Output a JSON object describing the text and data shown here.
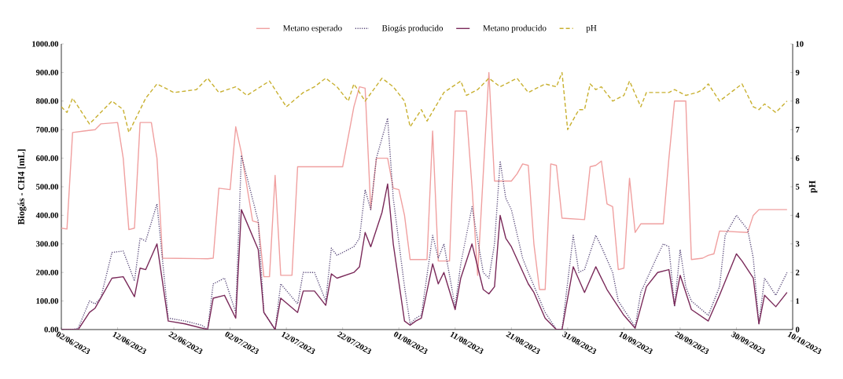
{
  "chart_data": {
    "type": "line",
    "ylabel": "Biogás - CH4 [mL]",
    "y2label": "pH",
    "legend": "top",
    "grid": false,
    "xlim": [
      "2023-06-02",
      "2023-10-10"
    ],
    "xticks": [
      {
        "value": "2023-06-02",
        "label": "02/06/2023"
      },
      {
        "value": "2023-06-12",
        "label": "12/06/2023"
      },
      {
        "value": "2023-06-22",
        "label": "22/06/2023"
      },
      {
        "value": "2023-07-02",
        "label": "02/07/2023"
      },
      {
        "value": "2023-07-12",
        "label": "12/07/2023"
      },
      {
        "value": "2023-07-22",
        "label": "22/07/2023"
      },
      {
        "value": "2023-08-01",
        "label": "01/08/2023"
      },
      {
        "value": "2023-08-11",
        "label": "11/08/2023"
      },
      {
        "value": "2023-08-21",
        "label": "21/08/2023"
      },
      {
        "value": "2023-08-31",
        "label": "31/08/2023"
      },
      {
        "value": "2023-09-10",
        "label": "10/09/2023"
      },
      {
        "value": "2023-09-20",
        "label": "20/09/2023"
      },
      {
        "value": "2023-09-30",
        "label": "30/09/2023"
      },
      {
        "value": "2023-10-10",
        "label": "10/10/2023"
      }
    ],
    "ylim": [
      0,
      1000
    ],
    "yticks": [
      {
        "value": 0,
        "label": "0.00"
      },
      {
        "value": 100,
        "label": "100.00"
      },
      {
        "value": 200,
        "label": "200.00"
      },
      {
        "value": 300,
        "label": "300.00"
      },
      {
        "value": 400,
        "label": "400.00"
      },
      {
        "value": 500,
        "label": "500.00"
      },
      {
        "value": 600,
        "label": "600.00"
      },
      {
        "value": 700,
        "label": "700.00"
      },
      {
        "value": 800,
        "label": "800.00"
      },
      {
        "value": 900,
        "label": "900.00"
      },
      {
        "value": 1000,
        "label": "1000.00"
      }
    ],
    "y2lim": [
      0,
      10
    ],
    "y2ticks": [
      0,
      1,
      2,
      3,
      4,
      5,
      6,
      7,
      8,
      9,
      10
    ],
    "series": [
      {
        "name": "Metano esperado",
        "color": "#f0a0a0",
        "line_style": "solid",
        "x": [
          "2023-06-02",
          "2023-06-03",
          "2023-06-04",
          "2023-06-06",
          "2023-06-08",
          "2023-06-09",
          "2023-06-12",
          "2023-06-13",
          "2023-06-14",
          "2023-06-15",
          "2023-06-16",
          "2023-06-18",
          "2023-06-19",
          "2023-06-20",
          "2023-06-28",
          "2023-06-29",
          "2023-06-30",
          "2023-07-02",
          "2023-07-03",
          "2023-07-04",
          "2023-07-06",
          "2023-07-07",
          "2023-07-08",
          "2023-07-09",
          "2023-07-10",
          "2023-07-11",
          "2023-07-13",
          "2023-07-14",
          "2023-07-22",
          "2023-07-24",
          "2023-07-25",
          "2023-07-26",
          "2023-07-27",
          "2023-07-28",
          "2023-07-30",
          "2023-07-31",
          "2023-08-01",
          "2023-08-02",
          "2023-08-03",
          "2023-08-06",
          "2023-08-07",
          "2023-08-08",
          "2023-08-10",
          "2023-08-11",
          "2023-08-13",
          "2023-08-14",
          "2023-08-15",
          "2023-08-17",
          "2023-08-18",
          "2023-08-21",
          "2023-08-22",
          "2023-08-23",
          "2023-08-24",
          "2023-08-25",
          "2023-08-26",
          "2023-08-27",
          "2023-08-28",
          "2023-08-29",
          "2023-08-30",
          "2023-09-03",
          "2023-09-04",
          "2023-09-05",
          "2023-09-06",
          "2023-09-07",
          "2023-09-08",
          "2023-09-09",
          "2023-09-10",
          "2023-09-11",
          "2023-09-12",
          "2023-09-13",
          "2023-09-17",
          "2023-09-18",
          "2023-09-19",
          "2023-09-21",
          "2023-09-22",
          "2023-09-24",
          "2023-09-25",
          "2023-09-26",
          "2023-09-27",
          "2023-10-02",
          "2023-10-03",
          "2023-10-04",
          "2023-10-09"
        ],
        "values": [
          355,
          352,
          690,
          695,
          700,
          720,
          725,
          600,
          350,
          355,
          725,
          725,
          600,
          250,
          248,
          250,
          495,
          490,
          710,
          620,
          380,
          375,
          185,
          185,
          540,
          190,
          190,
          570,
          570,
          780,
          850,
          845,
          420,
          600,
          600,
          495,
          490,
          400,
          245,
          245,
          695,
          240,
          240,
          765,
          765,
          500,
          190,
          900,
          520,
          520,
          545,
          580,
          575,
          300,
          140,
          140,
          580,
          575,
          390,
          385,
          570,
          575,
          590,
          440,
          430,
          210,
          215,
          530,
          340,
          370,
          370,
          600,
          800,
          800,
          245,
          250,
          260,
          265,
          345,
          340,
          400,
          420,
          420
        ]
      },
      {
        "name": "Biogás producido",
        "color": "#5a4a7a",
        "line_style": "dotted",
        "x": [
          "2023-06-02",
          "2023-06-03",
          "2023-06-04",
          "2023-06-05",
          "2023-06-07",
          "2023-06-08",
          "2023-06-09",
          "2023-06-11",
          "2023-06-13",
          "2023-06-15",
          "2023-06-16",
          "2023-06-17",
          "2023-06-19",
          "2023-06-21",
          "2023-06-24",
          "2023-06-27",
          "2023-06-28",
          "2023-06-29",
          "2023-07-01",
          "2023-07-03",
          "2023-07-04",
          "2023-07-07",
          "2023-07-08",
          "2023-07-10",
          "2023-07-11",
          "2023-07-14",
          "2023-07-15",
          "2023-07-17",
          "2023-07-19",
          "2023-07-20",
          "2023-07-21",
          "2023-07-24",
          "2023-07-25",
          "2023-07-26",
          "2023-07-27",
          "2023-07-28",
          "2023-07-30",
          "2023-07-31",
          "2023-08-02",
          "2023-08-03",
          "2023-08-04",
          "2023-08-05",
          "2023-08-07",
          "2023-08-08",
          "2023-08-09",
          "2023-08-11",
          "2023-08-12",
          "2023-08-14",
          "2023-08-16",
          "2023-08-17",
          "2023-08-18",
          "2023-08-19",
          "2023-08-20",
          "2023-08-21",
          "2023-08-23",
          "2023-08-24",
          "2023-08-27",
          "2023-08-29",
          "2023-08-30",
          "2023-09-01",
          "2023-09-02",
          "2023-09-03",
          "2023-09-05",
          "2023-09-06",
          "2023-09-08",
          "2023-09-09",
          "2023-09-11",
          "2023-09-12",
          "2023-09-13",
          "2023-09-16",
          "2023-09-17",
          "2023-09-18",
          "2023-09-19",
          "2023-09-20",
          "2023-09-21",
          "2023-09-22",
          "2023-09-25",
          "2023-09-27",
          "2023-09-28",
          "2023-09-30",
          "2023-10-02",
          "2023-10-03",
          "2023-10-04",
          "2023-10-05",
          "2023-10-07",
          "2023-10-09"
        ],
        "values": [
          0,
          0,
          0,
          5,
          100,
          90,
          110,
          270,
          275,
          170,
          320,
          310,
          440,
          40,
          30,
          15,
          0,
          160,
          180,
          60,
          610,
          380,
          60,
          0,
          160,
          90,
          200,
          200,
          100,
          285,
          260,
          290,
          320,
          490,
          420,
          600,
          740,
          460,
          150,
          20,
          40,
          50,
          330,
          250,
          300,
          80,
          230,
          430,
          200,
          180,
          300,
          590,
          460,
          420,
          250,
          200,
          60,
          0,
          0,
          330,
          200,
          210,
          330,
          290,
          200,
          100,
          40,
          10,
          130,
          260,
          300,
          290,
          80,
          280,
          150,
          100,
          50,
          150,
          330,
          400,
          350,
          250,
          20,
          180,
          120,
          200
        ]
      },
      {
        "name": "Metano producido",
        "color": "#7a2a5a",
        "line_style": "solid",
        "x": [
          "2023-06-02",
          "2023-06-05",
          "2023-06-07",
          "2023-06-08",
          "2023-06-11",
          "2023-06-13",
          "2023-06-15",
          "2023-06-16",
          "2023-06-17",
          "2023-06-19",
          "2023-06-21",
          "2023-06-24",
          "2023-06-27",
          "2023-06-28",
          "2023-06-29",
          "2023-07-01",
          "2023-07-03",
          "2023-07-04",
          "2023-07-07",
          "2023-07-08",
          "2023-07-10",
          "2023-07-11",
          "2023-07-14",
          "2023-07-15",
          "2023-07-17",
          "2023-07-19",
          "2023-07-20",
          "2023-07-21",
          "2023-07-24",
          "2023-07-25",
          "2023-07-26",
          "2023-07-27",
          "2023-07-29",
          "2023-07-30",
          "2023-07-31",
          "2023-08-02",
          "2023-08-03",
          "2023-08-04",
          "2023-08-05",
          "2023-08-07",
          "2023-08-08",
          "2023-08-09",
          "2023-08-11",
          "2023-08-12",
          "2023-08-14",
          "2023-08-16",
          "2023-08-17",
          "2023-08-18",
          "2023-08-19",
          "2023-08-20",
          "2023-08-21",
          "2023-08-24",
          "2023-08-25",
          "2023-08-27",
          "2023-08-29",
          "2023-08-30",
          "2023-09-01",
          "2023-09-03",
          "2023-09-05",
          "2023-09-07",
          "2023-09-10",
          "2023-09-12",
          "2023-09-14",
          "2023-09-16",
          "2023-09-18",
          "2023-09-19",
          "2023-09-20",
          "2023-09-22",
          "2023-09-25",
          "2023-09-27",
          "2023-09-30",
          "2023-10-01",
          "2023-10-03",
          "2023-10-04",
          "2023-10-05",
          "2023-10-07",
          "2023-10-09"
        ],
        "values": [
          0,
          0,
          60,
          75,
          180,
          185,
          115,
          215,
          210,
          300,
          30,
          20,
          5,
          0,
          110,
          120,
          40,
          420,
          280,
          60,
          0,
          110,
          60,
          135,
          135,
          85,
          195,
          180,
          200,
          220,
          340,
          290,
          410,
          510,
          300,
          30,
          15,
          30,
          40,
          230,
          160,
          200,
          70,
          180,
          300,
          140,
          125,
          150,
          400,
          320,
          290,
          160,
          130,
          40,
          0,
          0,
          220,
          130,
          220,
          140,
          50,
          5,
          150,
          200,
          210,
          85,
          190,
          70,
          30,
          120,
          265,
          240,
          180,
          20,
          120,
          80,
          130
        ]
      },
      {
        "name": "pH",
        "color": "#c8b030",
        "line_style": "dashed",
        "axis": "y2",
        "x": [
          "2023-06-02",
          "2023-06-03",
          "2023-06-04",
          "2023-06-07",
          "2023-06-11",
          "2023-06-13",
          "2023-06-14",
          "2023-06-15",
          "2023-06-17",
          "2023-06-19",
          "2023-06-22",
          "2023-06-26",
          "2023-06-28",
          "2023-06-30",
          "2023-07-03",
          "2023-07-05",
          "2023-07-09",
          "2023-07-12",
          "2023-07-15",
          "2023-07-17",
          "2023-07-19",
          "2023-07-21",
          "2023-07-23",
          "2023-07-24",
          "2023-07-26",
          "2023-07-29",
          "2023-07-31",
          "2023-08-02",
          "2023-08-03",
          "2023-08-05",
          "2023-08-06",
          "2023-08-09",
          "2023-08-12",
          "2023-08-13",
          "2023-08-15",
          "2023-08-17",
          "2023-08-19",
          "2023-08-22",
          "2023-08-24",
          "2023-08-27",
          "2023-08-29",
          "2023-08-30",
          "2023-08-31",
          "2023-09-02",
          "2023-09-03",
          "2023-09-04",
          "2023-09-05",
          "2023-09-06",
          "2023-09-08",
          "2023-09-10",
          "2023-09-11",
          "2023-09-13",
          "2023-09-14",
          "2023-09-18",
          "2023-09-19",
          "2023-09-21",
          "2023-09-23",
          "2023-09-24",
          "2023-09-25",
          "2023-09-27",
          "2023-09-29",
          "2023-10-01",
          "2023-10-03",
          "2023-10-04",
          "2023-10-05",
          "2023-10-07",
          "2023-10-08",
          "2023-10-09"
        ],
        "values": [
          7.8,
          7.6,
          8.1,
          7.2,
          8.0,
          7.7,
          6.9,
          7.3,
          8.1,
          8.6,
          8.3,
          8.4,
          8.8,
          8.3,
          8.5,
          8.2,
          8.7,
          7.8,
          8.3,
          8.5,
          8.8,
          8.5,
          8.0,
          8.6,
          8.0,
          8.8,
          8.5,
          8.0,
          7.1,
          7.7,
          7.3,
          8.3,
          8.7,
          8.2,
          8.4,
          8.8,
          8.5,
          8.8,
          8.3,
          8.6,
          8.5,
          9.0,
          7.0,
          7.7,
          7.7,
          8.6,
          8.4,
          8.5,
          8.0,
          8.2,
          8.7,
          7.8,
          8.3,
          8.3,
          8.4,
          8.2,
          8.3,
          8.4,
          8.6,
          8.0,
          8.3,
          8.6,
          7.8,
          7.7,
          7.9,
          7.6,
          7.8,
          8.0
        ]
      }
    ]
  }
}
